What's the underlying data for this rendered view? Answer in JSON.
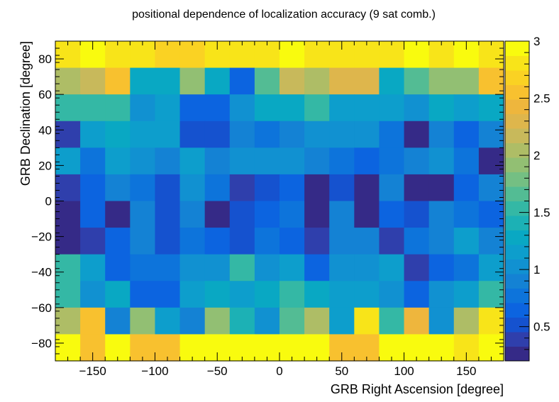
{
  "chart_data": {
    "type": "heatmap",
    "title": "positional dependence of localization accuracy (9 sat comb.)",
    "xlabel": "GRB Right Ascension [degree]",
    "ylabel": "GRB Declination [degree]",
    "xlim": [
      -180,
      180
    ],
    "ylim": [
      -90,
      90
    ],
    "x_bin_width": 20,
    "y_bin_width": 15,
    "x_ticks": [
      -150,
      -100,
      -50,
      0,
      50,
      100,
      150
    ],
    "x_tick_labels": [
      "−150",
      "−100",
      "−50",
      "0",
      "50",
      "100",
      "150"
    ],
    "y_ticks": [
      -80,
      -60,
      -40,
      -20,
      0,
      20,
      40,
      60,
      80
    ],
    "y_tick_labels": [
      "−80",
      "−60",
      "−40",
      "−20",
      "0",
      "20",
      "40",
      "60",
      "80"
    ],
    "z_range": [
      0.2,
      3.0
    ],
    "z_ticks": [
      0.5,
      1,
      1.5,
      2,
      2.5,
      3
    ],
    "z_tick_labels": [
      "0.5",
      "1",
      "1.5",
      "2",
      "2.5",
      "3"
    ],
    "palette": [
      "#352a87",
      "#2f3fac",
      "#1552cf",
      "#0c64e0",
      "#0d74db",
      "#1482d4",
      "#1191d1",
      "#0d9ecc",
      "#09a8c3",
      "#1cb1b5",
      "#34b8a5",
      "#53bc94",
      "#74bf83",
      "#92bf73",
      "#aebd66",
      "#c8b95b",
      "#deb64c",
      "#eeb63d",
      "#f8c12f",
      "#fad223",
      "#f8e419",
      "#f9fb0e"
    ],
    "z_values": [
      [
        2.8,
        2.9,
        2.8,
        2.8,
        2.7,
        2.7,
        2.8,
        2.8,
        2.8,
        3.0,
        2.8,
        2.8,
        2.8,
        2.8,
        3.0,
        2.8,
        2.9,
        2.8
      ],
      [
        2.0,
        2.2,
        2.5,
        1.3,
        1.3,
        1.9,
        1.3,
        0.7,
        1.7,
        2.2,
        2.0,
        2.3,
        2.3,
        1.3,
        1.7,
        1.9,
        1.9,
        2.5
      ],
      [
        1.5,
        1.5,
        1.5,
        1.0,
        1.1,
        0.6,
        0.6,
        1.0,
        1.3,
        1.3,
        1.5,
        1.2,
        1.2,
        1.2,
        1.0,
        1.3,
        1.1,
        1.3
      ],
      [
        0.4,
        1.2,
        1.3,
        1.1,
        1.1,
        0.5,
        0.5,
        0.9,
        0.8,
        0.9,
        1.0,
        1.0,
        1.0,
        0.8,
        0.3,
        0.9,
        0.7,
        0.9
      ],
      [
        1.2,
        0.8,
        1.1,
        1.0,
        0.9,
        1.2,
        0.9,
        1.0,
        1.0,
        1.0,
        0.9,
        0.8,
        0.7,
        0.8,
        0.9,
        1.0,
        0.8,
        0.2
      ],
      [
        0.4,
        0.6,
        0.9,
        0.8,
        0.5,
        1.0,
        0.8,
        0.4,
        0.5,
        0.7,
        0.3,
        0.5,
        0.3,
        0.9,
        0.3,
        0.3,
        0.6,
        0.9
      ],
      [
        0.3,
        0.7,
        0.3,
        0.9,
        0.5,
        0.9,
        0.3,
        0.5,
        0.7,
        0.8,
        0.3,
        0.9,
        0.3,
        0.7,
        0.5,
        0.9,
        0.8,
        0.6
      ],
      [
        0.3,
        0.4,
        0.6,
        0.9,
        0.5,
        0.8,
        0.7,
        0.5,
        0.8,
        0.6,
        0.4,
        0.9,
        0.9,
        0.4,
        0.8,
        0.9,
        1.1,
        0.9
      ],
      [
        1.5,
        1.1,
        0.7,
        0.8,
        0.8,
        1.0,
        1.0,
        1.5,
        1.0,
        1.2,
        0.7,
        1.0,
        1.0,
        1.1,
        0.4,
        0.6,
        0.8,
        1.2
      ],
      [
        1.5,
        1.0,
        1.3,
        0.7,
        0.7,
        1.1,
        1.3,
        1.1,
        1.3,
        1.5,
        1.3,
        1.2,
        1.2,
        1.0,
        0.7,
        1.0,
        1.1,
        1.5
      ],
      [
        2.0,
        2.5,
        0.9,
        1.9,
        1.2,
        0.9,
        1.9,
        1.4,
        1.0,
        1.7,
        2.1,
        1.2,
        2.8,
        1.5,
        2.4,
        1.0,
        2.0,
        2.8
      ],
      [
        2.9,
        2.6,
        2.9,
        2.6,
        2.6,
        3.0,
        3.0,
        3.0,
        2.9,
        2.9,
        3.0,
        2.6,
        2.6,
        2.9,
        2.9,
        2.9,
        2.8,
        3.0
      ]
    ]
  }
}
